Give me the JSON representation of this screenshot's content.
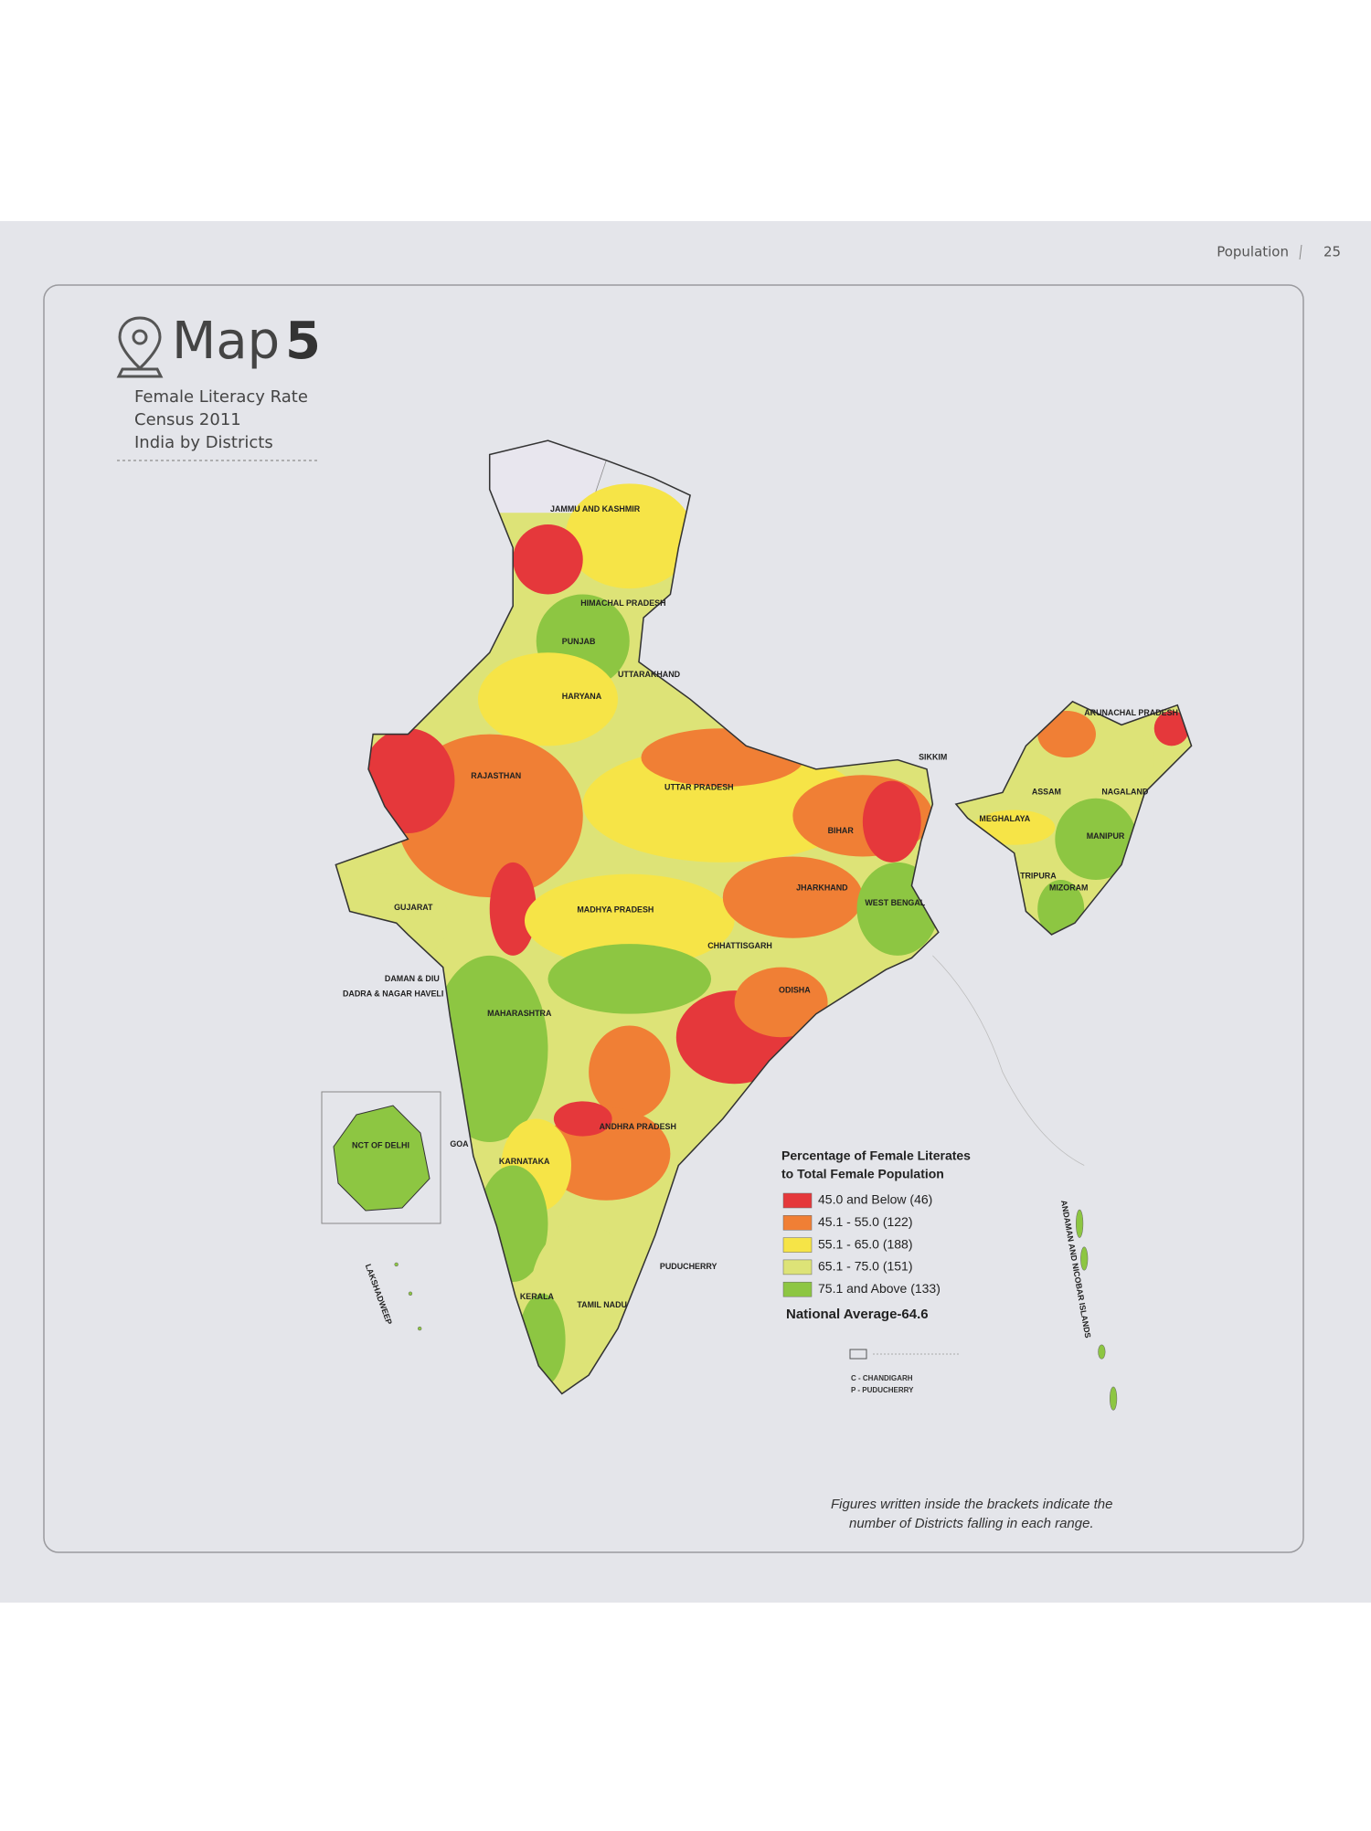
{
  "header": {
    "section": "Population",
    "page": "25"
  },
  "title": {
    "prefix": "Map",
    "number": "5"
  },
  "subtitle": [
    "Female Literacy Rate",
    "Census 2011",
    "India by Districts"
  ],
  "inset_label": "NCT OF DELHI",
  "state_labels": [
    "JAMMU AND KASHMIR",
    "HIMACHAL PRADESH",
    "PUNJAB",
    "UTTARAKHAND",
    "HARYANA",
    "RAJASTHAN",
    "UTTAR PRADESH",
    "BIHAR",
    "SIKKIM",
    "ARUNACHAL PRADESH",
    "ASSAM",
    "NAGALAND",
    "MEGHALAYA",
    "MANIPUR",
    "TRIPURA",
    "MIZORAM",
    "GUJARAT",
    "MADHYA PRADESH",
    "JHARKHAND",
    "WEST BENGAL",
    "CHHATTISGARH",
    "ODISHA",
    "DAMAN & DIU",
    "DADRA & NAGAR HAVELI",
    "MAHARASHTRA",
    "ANDHRA PRADESH",
    "GOA",
    "KARNATAKA",
    "PUDUCHERRY",
    "KERALA",
    "TAMIL NADU",
    "LAKSHADWEEP",
    "ANDAMAN AND NICOBAR ISLANDS"
  ],
  "legend": {
    "title": [
      "Percentage of Female Literates",
      "to Total Female Population"
    ],
    "items": [
      {
        "label": "45.0 and Below (46)",
        "color": "#e5383b"
      },
      {
        "label": "45.1 - 55.0 (122)",
        "color": "#f07f35"
      },
      {
        "label": "55.1 - 65.0 (188)",
        "color": "#f6e447"
      },
      {
        "label": "65.1 - 75.0 (151)",
        "color": "#dde377"
      },
      {
        "label": "75.1 and Above (133)",
        "color": "#8dc642"
      }
    ],
    "national_average": "National Average-64.6"
  },
  "key": [
    "C - CHANDIGARH",
    "P - PUDUCHERRY"
  ],
  "footnote": [
    "Figures written inside the brackets indicate the",
    "number of Districts falling in each range."
  ]
}
